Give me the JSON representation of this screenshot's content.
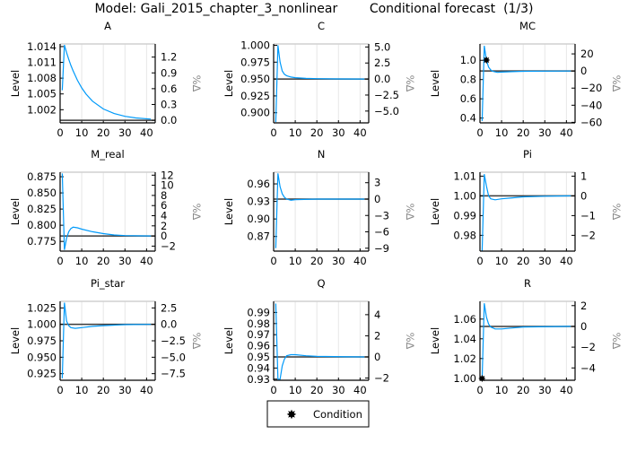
{
  "title": "Model: Gali_2015_chapter_3_nonlinear        Conditional forecast  (1/3)",
  "legend": {
    "label": "Condition",
    "position": "bottom-center"
  },
  "colors": {
    "line": "#009AFA",
    "steady_state": "#3a3a3a",
    "condition": "#000000",
    "grid": "#e6e6e6"
  },
  "chart_data": [
    {
      "type": "line",
      "title": "A",
      "ylabel": "Level",
      "ylabel_right": "%Δ",
      "xlim": [
        0,
        44
      ],
      "ylim": [
        0.9995,
        1.0145
      ],
      "steady_state": 1.0,
      "xticks": [
        0,
        10,
        20,
        30,
        40
      ],
      "yticks": [
        "1.002",
        "1.005",
        "1.008",
        "1.011",
        "1.014"
      ],
      "yticks_right": [
        "0.0",
        "0.3",
        "0.6",
        "0.9",
        "1.2"
      ],
      "x": [
        1,
        2,
        3,
        4,
        5,
        6,
        8,
        10,
        12,
        15,
        20,
        25,
        30,
        35,
        42
      ],
      "y": [
        1.0057,
        1.0143,
        1.01287,
        1.01158,
        1.01042,
        1.00938,
        1.0076,
        1.00615,
        1.00498,
        1.00363,
        1.00214,
        1.00127,
        1.00075,
        1.00044,
        1.00021
      ],
      "conditions": []
    },
    {
      "type": "line",
      "title": "C",
      "ylabel": "Level",
      "ylabel_right": "%Δ",
      "xlim": [
        0,
        44
      ],
      "ylim": [
        0.885,
        1.002
      ],
      "steady_state": 0.95,
      "xticks": [
        0,
        10,
        20,
        30,
        40
      ],
      "yticks": [
        "0.900",
        "0.925",
        "0.950",
        "0.975",
        "1.000"
      ],
      "yticks_right": [
        "−5.0",
        "−2.5",
        "0.0",
        "2.5",
        "5.0"
      ],
      "x": [
        1,
        2,
        3,
        4,
        5,
        6,
        8,
        10,
        15,
        20,
        30,
        42
      ],
      "y": [
        0.886,
        1.0,
        0.975,
        0.962,
        0.957,
        0.955,
        0.953,
        0.952,
        0.951,
        0.9505,
        0.9502,
        0.95
      ],
      "conditions": []
    },
    {
      "type": "line",
      "title": "MC",
      "ylabel": "Level",
      "ylabel_right": "%Δ",
      "xlim": [
        0,
        44
      ],
      "ylim": [
        0.35,
        1.17
      ],
      "steady_state": 0.889,
      "xticks": [
        0,
        10,
        20,
        30,
        40
      ],
      "yticks": [
        "0.4",
        "0.6",
        "0.8",
        "1.0"
      ],
      "yticks_right": [
        "−60",
        "−40",
        "−20",
        "0",
        "20"
      ],
      "x": [
        1,
        2,
        3,
        4,
        5,
        6,
        8,
        10,
        15,
        20,
        30,
        42
      ],
      "y": [
        0.37,
        1.15,
        1.0,
        0.93,
        0.9,
        0.885,
        0.875,
        0.877,
        0.882,
        0.886,
        0.888,
        0.889
      ],
      "conditions": [
        {
          "x": 3,
          "y": 1.0
        }
      ]
    },
    {
      "type": "line",
      "title": "M_real",
      "ylabel": "Level",
      "ylabel_right": "%Δ",
      "xlim": [
        0,
        44
      ],
      "ylim": [
        0.76,
        0.882
      ],
      "steady_state": 0.7834,
      "xticks": [
        0,
        10,
        20,
        30,
        40
      ],
      "yticks": [
        "0.775",
        "0.800",
        "0.825",
        "0.850",
        "0.875"
      ],
      "yticks_right": [
        "−2",
        "0",
        "2",
        "4",
        "6",
        "8",
        "10",
        "12"
      ],
      "x": [
        1,
        2,
        3,
        4,
        5,
        6,
        8,
        10,
        15,
        20,
        25,
        30,
        42
      ],
      "y": [
        0.88,
        0.762,
        0.78,
        0.79,
        0.795,
        0.797,
        0.796,
        0.794,
        0.79,
        0.787,
        0.785,
        0.784,
        0.7834
      ],
      "conditions": []
    },
    {
      "type": "line",
      "title": "N",
      "ylabel": "Level",
      "ylabel_right": "%Δ",
      "xlim": [
        0,
        44
      ],
      "ylim": [
        0.845,
        0.98
      ],
      "steady_state": 0.934,
      "xticks": [
        0,
        10,
        20,
        30,
        40
      ],
      "yticks": [
        "0.87",
        "0.90",
        "0.93",
        "0.96"
      ],
      "yticks_right": [
        "−9",
        "−6",
        "−3",
        "0",
        "3"
      ],
      "x": [
        1,
        2,
        3,
        4,
        5,
        6,
        8,
        10,
        20,
        42
      ],
      "y": [
        0.85,
        0.978,
        0.955,
        0.943,
        0.937,
        0.934,
        0.932,
        0.933,
        0.934,
        0.934
      ],
      "conditions": []
    },
    {
      "type": "line",
      "title": "Pi",
      "ylabel": "Level",
      "ylabel_right": "%Δ",
      "xlim": [
        0,
        44
      ],
      "ylim": [
        0.972,
        1.012
      ],
      "steady_state": 1.0,
      "xticks": [
        0,
        10,
        20,
        30,
        40
      ],
      "yticks": [
        "0.98",
        "0.99",
        "1.00",
        "1.01"
      ],
      "yticks_right": [
        "−2",
        "−1",
        "0",
        "1"
      ],
      "x": [
        1,
        2,
        3,
        4,
        5,
        7,
        10,
        15,
        20,
        30,
        42
      ],
      "y": [
        0.972,
        1.011,
        1.005,
        1.0,
        0.9985,
        0.998,
        0.9985,
        0.999,
        0.9995,
        0.9998,
        1.0
      ],
      "conditions": []
    },
    {
      "type": "line",
      "title": "Pi_star",
      "ylabel": "Level",
      "ylabel_right": "%Δ",
      "xlim": [
        0,
        44
      ],
      "ylim": [
        0.915,
        1.035
      ],
      "steady_state": 1.0,
      "xticks": [
        0,
        10,
        20,
        30,
        40
      ],
      "yticks": [
        "0.925",
        "0.950",
        "0.975",
        "1.000",
        "1.025"
      ],
      "yticks_right": [
        "−7.5",
        "−5.0",
        "−2.5",
        "0.0",
        "2.5"
      ],
      "x": [
        1,
        2,
        3,
        4,
        5,
        7,
        10,
        15,
        20,
        30,
        42
      ],
      "y": [
        0.918,
        1.033,
        1.005,
        0.998,
        0.995,
        0.994,
        0.995,
        0.997,
        0.998,
        0.9995,
        1.0
      ],
      "conditions": []
    },
    {
      "type": "line",
      "title": "Q",
      "ylabel": "Level",
      "ylabel_right": "%Δ",
      "xlim": [
        0,
        44
      ],
      "ylim": [
        0.929,
        1.0
      ],
      "steady_state": 0.95,
      "xticks": [
        0,
        10,
        20,
        30,
        40
      ],
      "yticks": [
        "0.93",
        "0.94",
        "0.95",
        "0.96",
        "0.97",
        "0.98",
        "0.99"
      ],
      "yticks_right": [
        "−2",
        "0",
        "2",
        "4"
      ],
      "x": [
        1,
        2,
        3,
        4,
        5,
        6,
        8,
        10,
        15,
        20,
        42
      ],
      "y": [
        0.998,
        0.93,
        0.93,
        0.942,
        0.948,
        0.951,
        0.952,
        0.952,
        0.951,
        0.9505,
        0.95
      ],
      "conditions": []
    },
    {
      "type": "line",
      "title": "R",
      "ylabel": "Level",
      "ylabel_right": "%Δ",
      "xlim": [
        0,
        44
      ],
      "ylim": [
        0.998,
        1.078
      ],
      "steady_state": 1.0526,
      "xticks": [
        0,
        10,
        20,
        30,
        40
      ],
      "yticks": [
        "1.00",
        "1.02",
        "1.04",
        "1.06"
      ],
      "yticks_right": [
        "−4",
        "−2",
        "0",
        "2"
      ],
      "x": [
        1,
        2,
        3,
        4,
        5,
        7,
        10,
        15,
        20,
        42
      ],
      "y": [
        1.0,
        1.076,
        1.062,
        1.055,
        1.052,
        1.05,
        1.05,
        1.051,
        1.052,
        1.0526
      ],
      "conditions": [
        {
          "x": 1,
          "y": 1.0
        }
      ]
    }
  ]
}
